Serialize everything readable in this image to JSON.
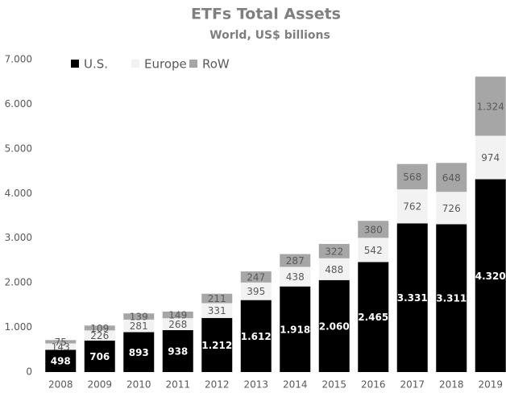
{
  "chart_data": {
    "type": "stacked_bar",
    "title": "ETFs Total Assets",
    "subtitle": "World, US$ billions",
    "categories": [
      "2008",
      "2009",
      "2010",
      "2011",
      "2012",
      "2013",
      "2014",
      "2015",
      "2016",
      "2017",
      "2018",
      "2019"
    ],
    "series": [
      {
        "name": "U.S.",
        "color": "#000000",
        "values": [
          498,
          706,
          893,
          938,
          1212,
          1612,
          1918,
          2060,
          2465,
          3331,
          3311,
          4320
        ],
        "value_labels": [
          "498",
          "706",
          "893",
          "938",
          "1.212",
          "1.612",
          "1.918",
          "2.060",
          "2.465",
          "3.331",
          "3.311",
          "4.320"
        ]
      },
      {
        "name": "Europe",
        "color": "#f2f2f2",
        "values": [
          143,
          226,
          281,
          268,
          331,
          395,
          438,
          488,
          542,
          762,
          726,
          974
        ]
      },
      {
        "name": "RoW",
        "color": "#a6a6a6",
        "values": [
          75,
          109,
          139,
          149,
          211,
          247,
          287,
          322,
          380,
          568,
          648,
          1324
        ],
        "value_labels": [
          "75",
          "109",
          "139",
          "149",
          "211",
          "247",
          "287",
          "322",
          "380",
          "568",
          "648",
          "1.324"
        ]
      }
    ],
    "ylim": [
      0,
      7000
    ],
    "yticks": [
      0,
      {
        "value": 1000,
        "label": "1.000"
      },
      {
        "value": 2000,
        "label": "2.000"
      },
      {
        "value": 3000,
        "label": "3.000"
      },
      {
        "value": 4000,
        "label": "4.000"
      },
      {
        "value": 5000,
        "label": "5.000"
      },
      {
        "value": 6000,
        "label": "6.000"
      },
      {
        "value": 7000,
        "label": "7.000"
      }
    ],
    "grid": false,
    "legend": "top-left"
  }
}
